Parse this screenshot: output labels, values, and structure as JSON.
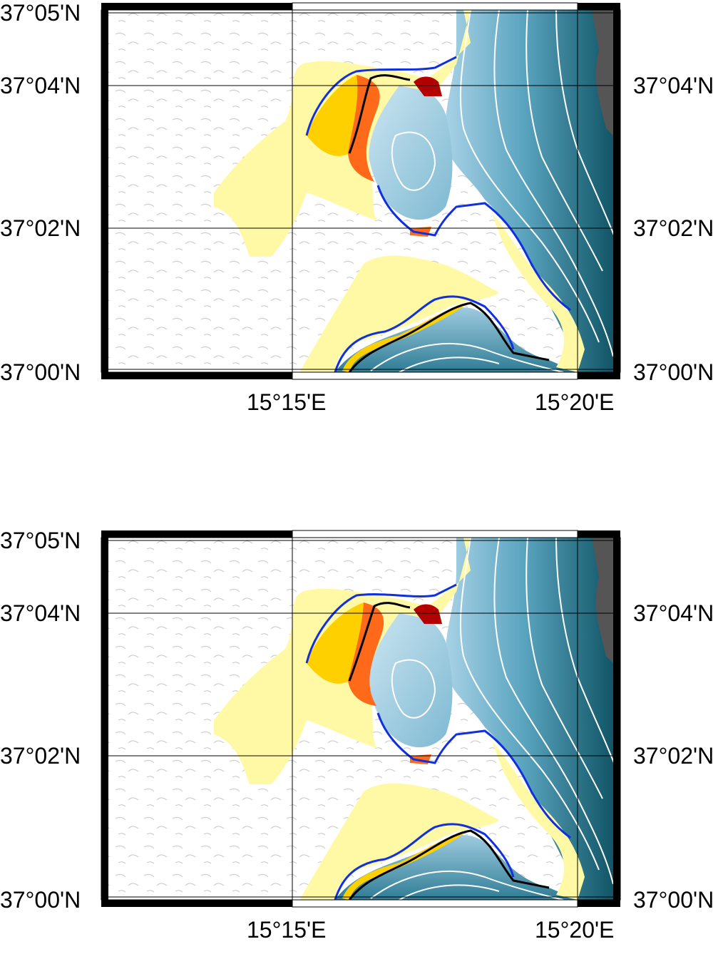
{
  "colors": {
    "land": "#ffffff",
    "hillshade": "#bdbdbd",
    "inundation_light": "#fff9a6",
    "inundation_gold": "#ffd000",
    "inundation_orange": "#ff6a1a",
    "inundation_red": "#b30000",
    "sea_light": "#a8d2e6",
    "sea_mid": "#5aa4bf",
    "sea_deep": "#0b4f5f",
    "contour": "#ffffff",
    "outline_blue": "#1030e0",
    "outline_black": "#000000",
    "dark_band": "#555555"
  },
  "maps": [
    {
      "lat_labels": [
        "37°05'N",
        "37°04'N",
        "37°02'N",
        "37°00'N"
      ],
      "lat_labels_right": [
        "37°04'N",
        "37°02'N",
        "37°00'N"
      ],
      "lon_labels": [
        "15°15'E",
        "15°20'E"
      ]
    },
    {
      "lat_labels": [
        "37°05'N",
        "37°04'N",
        "37°02'N",
        "37°00'N"
      ],
      "lat_labels_right": [
        "37°04'N",
        "37°02'N",
        "37°00'N"
      ],
      "lon_labels": [
        "15°15'E",
        "15°20'E"
      ]
    }
  ]
}
